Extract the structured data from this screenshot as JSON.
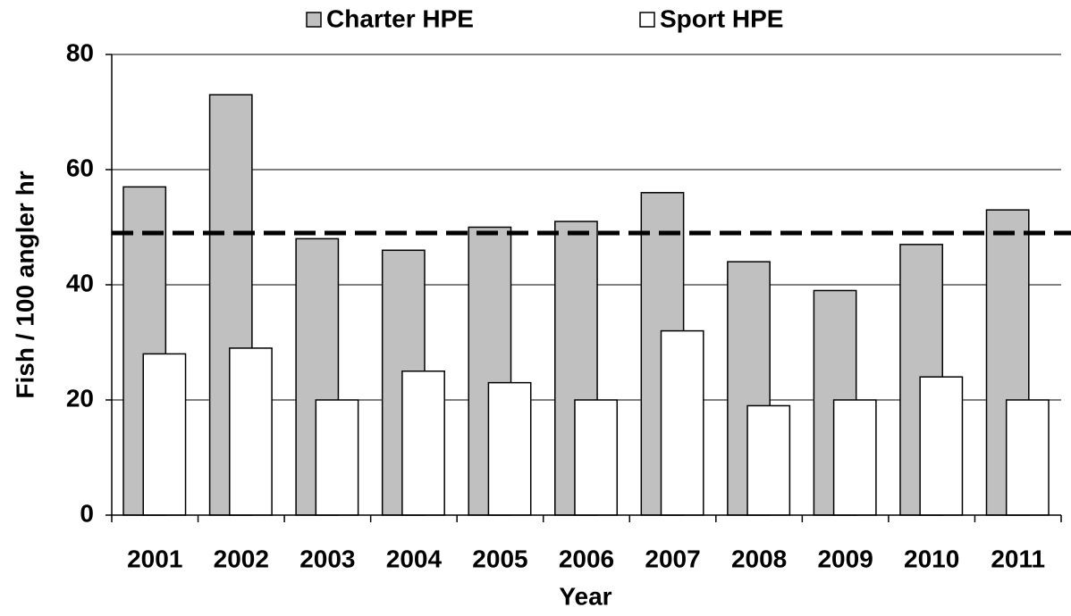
{
  "chart_data": {
    "type": "bar",
    "categories": [
      "2001",
      "2002",
      "2003",
      "2004",
      "2005",
      "2006",
      "2007",
      "2008",
      "2009",
      "2010",
      "2011"
    ],
    "series": [
      {
        "name": "Charter HPE",
        "color": "#c0c0c0",
        "values": [
          57,
          73,
          48,
          46,
          50,
          51,
          56,
          44,
          39,
          47,
          53
        ]
      },
      {
        "name": "Sport HPE",
        "color": "#ffffff",
        "values": [
          28,
          29,
          20,
          25,
          23,
          20,
          32,
          19,
          20,
          24,
          20
        ]
      }
    ],
    "reference_line": 49,
    "x_label": "Year",
    "y_label": "Fish / 100 angler hr",
    "ylim": [
      0,
      80
    ],
    "yticks": [
      0,
      20,
      40,
      60,
      80
    ],
    "grid": true,
    "legend": "top"
  }
}
